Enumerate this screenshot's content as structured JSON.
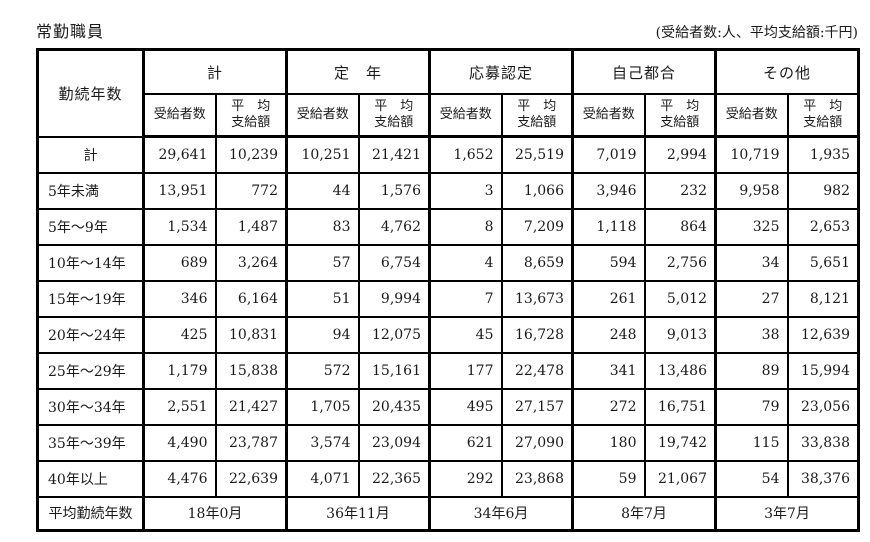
{
  "title": "常勤職員",
  "note": "(受給者数:人、平均支給額:千円)",
  "table": {
    "corner_label": "勤続年数",
    "groups": [
      {
        "label": "計"
      },
      {
        "label": "定　年"
      },
      {
        "label": "応募認定"
      },
      {
        "label": "自己都合"
      },
      {
        "label": "その他"
      }
    ],
    "sub_headers": {
      "recipients": "受給者数",
      "avg_amount": "平　均\n支給額"
    },
    "rows": [
      {
        "label": "計",
        "center": true,
        "values": [
          "29,641",
          "10,239",
          "10,251",
          "21,421",
          "1,652",
          "25,519",
          "7,019",
          "2,994",
          "10,719",
          "1,935"
        ]
      },
      {
        "label": "5年未満",
        "center": false,
        "values": [
          "13,951",
          "772",
          "44",
          "1,576",
          "3",
          "1,066",
          "3,946",
          "232",
          "9,958",
          "982"
        ]
      },
      {
        "label": "5年〜9年",
        "center": false,
        "values": [
          "1,534",
          "1,487",
          "83",
          "4,762",
          "8",
          "7,209",
          "1,118",
          "864",
          "325",
          "2,653"
        ]
      },
      {
        "label": "10年〜14年",
        "center": false,
        "values": [
          "689",
          "3,264",
          "57",
          "6,754",
          "4",
          "8,659",
          "594",
          "2,756",
          "34",
          "5,651"
        ]
      },
      {
        "label": "15年〜19年",
        "center": false,
        "values": [
          "346",
          "6,164",
          "51",
          "9,994",
          "7",
          "13,673",
          "261",
          "5,012",
          "27",
          "8,121"
        ]
      },
      {
        "label": "20年〜24年",
        "center": false,
        "values": [
          "425",
          "10,831",
          "94",
          "12,075",
          "45",
          "16,728",
          "248",
          "9,013",
          "38",
          "12,639"
        ]
      },
      {
        "label": "25年〜29年",
        "center": false,
        "values": [
          "1,179",
          "15,838",
          "572",
          "15,161",
          "177",
          "22,478",
          "341",
          "13,486",
          "89",
          "15,994"
        ]
      },
      {
        "label": "30年〜34年",
        "center": false,
        "values": [
          "2,551",
          "21,427",
          "1,705",
          "20,435",
          "495",
          "27,157",
          "272",
          "16,751",
          "79",
          "23,056"
        ]
      },
      {
        "label": "35年〜39年",
        "center": false,
        "values": [
          "4,490",
          "23,787",
          "3,574",
          "23,094",
          "621",
          "27,090",
          "180",
          "19,742",
          "115",
          "33,838"
        ]
      },
      {
        "label": "40年以上",
        "center": false,
        "values": [
          "4,476",
          "22,639",
          "4,071",
          "22,365",
          "292",
          "23,868",
          "59",
          "21,067",
          "54",
          "38,376"
        ]
      }
    ],
    "footer": {
      "label": "平均勤続年数",
      "values": [
        "18年0月",
        "36年11月",
        "34年6月",
        "8年7月",
        "3年7月"
      ]
    }
  }
}
